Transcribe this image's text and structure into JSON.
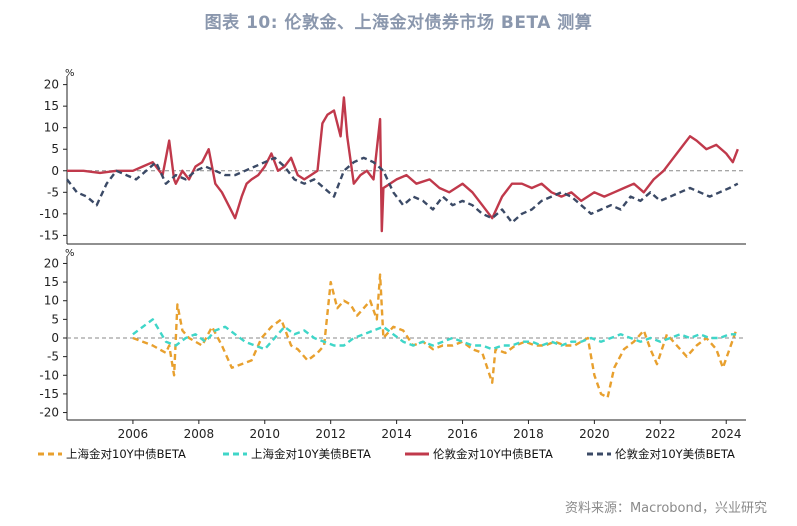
{
  "title": "图表 10: 伦敦金、上海金对债券市场 BETA 测算",
  "source": "资料来源：Macrobond，兴业研究",
  "chart_data": [
    {
      "type": "line",
      "panel": "top",
      "unit_label": "%",
      "ylim": [
        -17,
        22
      ],
      "yticks": [
        20,
        15,
        10,
        5,
        0,
        -5,
        -10,
        -15
      ],
      "zero_line": true,
      "series": [
        {
          "name": "伦敦金对10Y中债BETA",
          "color": "#c0394b",
          "style": "solid",
          "x": [
            2004.0,
            2004.5,
            2005.0,
            2005.5,
            2006.0,
            2006.3,
            2006.6,
            2006.9,
            2007.1,
            2007.25,
            2007.3,
            2007.5,
            2007.7,
            2007.9,
            2008.1,
            2008.3,
            2008.5,
            2008.7,
            2008.9,
            2009.1,
            2009.3,
            2009.45,
            2009.6,
            2009.8,
            2010.0,
            2010.2,
            2010.4,
            2010.6,
            2010.8,
            2011.0,
            2011.2,
            2011.4,
            2011.6,
            2011.75,
            2011.9,
            2012.1,
            2012.3,
            2012.4,
            2012.5,
            2012.7,
            2012.9,
            2013.1,
            2013.3,
            2013.5,
            2013.55,
            2013.6,
            2013.8,
            2014.0,
            2014.3,
            2014.6,
            2015.0,
            2015.3,
            2015.6,
            2016.0,
            2016.3,
            2016.6,
            2016.9,
            2017.2,
            2017.5,
            2017.8,
            2018.1,
            2018.4,
            2018.7,
            2019.0,
            2019.3,
            2019.6,
            2020.0,
            2020.3,
            2020.6,
            2020.9,
            2021.2,
            2021.5,
            2021.8,
            2022.1,
            2022.4,
            2022.7,
            2022.9,
            2023.1,
            2023.4,
            2023.7,
            2024.0,
            2024.2,
            2024.35
          ],
          "y": [
            0,
            0,
            -0.5,
            0,
            0,
            1,
            2,
            -1,
            7,
            -2,
            -3,
            0,
            -2,
            1,
            2,
            5,
            -3,
            -5,
            -8,
            -11,
            -6,
            -3,
            -2,
            -1,
            1,
            4,
            0,
            1,
            3,
            -1,
            -2,
            -1,
            0,
            11,
            13,
            14,
            8,
            17,
            8,
            -3,
            -1,
            0,
            -2,
            12,
            -14,
            -4,
            -3,
            -2,
            -1,
            -3,
            -2,
            -4,
            -5,
            -3,
            -5,
            -8,
            -11,
            -6,
            -3,
            -3,
            -4,
            -3,
            -5,
            -6,
            -5,
            -7,
            -5,
            -6,
            -5,
            -4,
            -3,
            -5,
            -2,
            0,
            3,
            6,
            8,
            7,
            5,
            6,
            4,
            2,
            5
          ]
        },
        {
          "name": "伦敦金对10Y美债BETA",
          "color": "#3b4a66",
          "style": "dashed",
          "x": [
            2004.0,
            2004.3,
            2004.6,
            2004.9,
            2005.2,
            2005.5,
            2005.8,
            2006.1,
            2006.4,
            2006.7,
            2007.0,
            2007.3,
            2007.6,
            2007.9,
            2008.2,
            2008.5,
            2008.8,
            2009.1,
            2009.4,
            2009.7,
            2010.0,
            2010.3,
            2010.6,
            2010.9,
            2011.2,
            2011.5,
            2011.8,
            2012.1,
            2012.4,
            2012.7,
            2013.0,
            2013.3,
            2013.6,
            2013.9,
            2014.2,
            2014.5,
            2014.8,
            2015.1,
            2015.4,
            2015.7,
            2016.0,
            2016.3,
            2016.6,
            2016.9,
            2017.2,
            2017.5,
            2017.8,
            2018.1,
            2018.4,
            2018.7,
            2019.0,
            2019.3,
            2019.6,
            2019.9,
            2020.2,
            2020.5,
            2020.8,
            2021.1,
            2021.4,
            2021.7,
            2022.0,
            2022.3,
            2022.6,
            2022.9,
            2023.2,
            2023.5,
            2023.8,
            2024.1,
            2024.35
          ],
          "y": [
            -2,
            -5,
            -6,
            -8,
            -3,
            0,
            -1,
            -2,
            0,
            2,
            -3,
            -1,
            -2,
            0,
            1,
            0,
            -1,
            -1,
            0,
            1,
            2,
            3,
            1,
            -2,
            -3,
            -2,
            -4,
            -6,
            0,
            2,
            3,
            2,
            0,
            -5,
            -8,
            -6,
            -7,
            -9,
            -6,
            -8,
            -7,
            -8,
            -10,
            -11,
            -9,
            -12,
            -10,
            -9,
            -7,
            -6,
            -5,
            -6,
            -8,
            -10,
            -9,
            -8,
            -9,
            -6,
            -7,
            -5,
            -7,
            -6,
            -5,
            -4,
            -5,
            -6,
            -5,
            -4,
            -3
          ]
        }
      ]
    },
    {
      "type": "line",
      "panel": "bottom",
      "unit_label": "%",
      "ylim": [
        -22,
        22
      ],
      "yticks": [
        20,
        15,
        10,
        5,
        0,
        -5,
        -10,
        -15,
        -20
      ],
      "zero_line": true,
      "xticks": [
        "2006",
        "2008",
        "2010",
        "2012",
        "2014",
        "2016",
        "2018",
        "2020",
        "2022",
        "2024"
      ],
      "series": [
        {
          "name": "上海金对10Y中债BETA",
          "color": "#e8a02e",
          "style": "dashed",
          "x": [
            2006.0,
            2006.3,
            2006.6,
            2006.8,
            2007.0,
            2007.1,
            2007.25,
            2007.35,
            2007.5,
            2007.7,
            2007.9,
            2008.1,
            2008.4,
            2008.7,
            2009.0,
            2009.3,
            2009.6,
            2009.9,
            2010.2,
            2010.5,
            2010.8,
            2011.0,
            2011.3,
            2011.6,
            2011.8,
            2012.0,
            2012.2,
            2012.4,
            2012.6,
            2012.8,
            2013.0,
            2013.2,
            2013.4,
            2013.5,
            2013.6,
            2013.9,
            2014.2,
            2014.5,
            2014.8,
            2015.1,
            2015.4,
            2015.7,
            2016.0,
            2016.3,
            2016.6,
            2016.9,
            2017.0,
            2017.3,
            2017.6,
            2017.9,
            2018.2,
            2018.5,
            2018.8,
            2019.1,
            2019.4,
            2019.6,
            2019.8,
            2020.0,
            2020.2,
            2020.4,
            2020.6,
            2020.9,
            2021.2,
            2021.5,
            2021.7,
            2021.9,
            2022.2,
            2022.5,
            2022.8,
            2023.1,
            2023.4,
            2023.7,
            2023.9,
            2024.1,
            2024.3
          ],
          "y": [
            0,
            -1,
            -2,
            -3,
            -4,
            -2,
            -10,
            9,
            2,
            0,
            -1,
            -2,
            3,
            -2,
            -8,
            -7,
            -6,
            0,
            3,
            5,
            -2,
            -3,
            -6,
            -4,
            -2,
            15,
            8,
            10,
            9,
            6,
            8,
            10,
            5,
            17,
            0,
            3,
            2,
            -2,
            -1,
            -3,
            -2,
            -2,
            -1,
            -3,
            -4,
            -12,
            -3,
            -4,
            -2,
            -1,
            -2,
            -2,
            -1,
            -2,
            -2,
            -1,
            0,
            -10,
            -15,
            -16,
            -8,
            -3,
            -1,
            2,
            -3,
            -7,
            1,
            -2,
            -5,
            -2,
            0,
            -3,
            -8,
            -3,
            2
          ]
        },
        {
          "name": "上海金对10Y美债BETA",
          "color": "#3fd6c8",
          "style": "dashed",
          "x": [
            2006.0,
            2006.3,
            2006.6,
            2006.8,
            2007.0,
            2007.3,
            2007.6,
            2007.9,
            2008.2,
            2008.5,
            2008.8,
            2009.1,
            2009.4,
            2009.7,
            2010.0,
            2010.3,
            2010.6,
            2010.9,
            2011.2,
            2011.5,
            2011.8,
            2012.1,
            2012.4,
            2012.7,
            2013.0,
            2013.3,
            2013.6,
            2013.9,
            2014.2,
            2014.5,
            2014.8,
            2015.1,
            2015.4,
            2015.7,
            2016.0,
            2016.3,
            2016.6,
            2016.9,
            2017.2,
            2017.5,
            2017.8,
            2018.1,
            2018.4,
            2018.7,
            2019.0,
            2019.3,
            2019.6,
            2019.9,
            2020.2,
            2020.5,
            2020.8,
            2021.1,
            2021.4,
            2021.7,
            2022.0,
            2022.3,
            2022.6,
            2022.9,
            2023.2,
            2023.5,
            2023.8,
            2024.1,
            2024.3
          ],
          "y": [
            1,
            3,
            5,
            2,
            -1,
            -2,
            0,
            1,
            -1,
            2,
            3,
            1,
            -1,
            -2,
            -3,
            0,
            3,
            1,
            2,
            0,
            -1,
            -2,
            -2,
            0,
            1,
            2,
            3,
            1,
            -1,
            -2,
            -1,
            -2,
            -1,
            0,
            -1,
            -2,
            -2,
            -3,
            -2,
            -2,
            -1,
            -1,
            -2,
            -1,
            -2,
            -1,
            -1,
            0,
            -1,
            0,
            1,
            0,
            -1,
            0,
            -1,
            0,
            1,
            0,
            1,
            0,
            0,
            1,
            1
          ]
        }
      ]
    }
  ],
  "legend": [
    {
      "label": "上海金对10Y中债BETA",
      "color": "#e8a02e",
      "style": "dashed"
    },
    {
      "label": "上海金对10Y美债BETA",
      "color": "#3fd6c8",
      "style": "dashed"
    },
    {
      "label": "伦敦金对10Y中债BETA",
      "color": "#c0394b",
      "style": "solid"
    },
    {
      "label": "伦敦金对10Y美债BETA",
      "color": "#3b4a66",
      "style": "dashed"
    }
  ]
}
